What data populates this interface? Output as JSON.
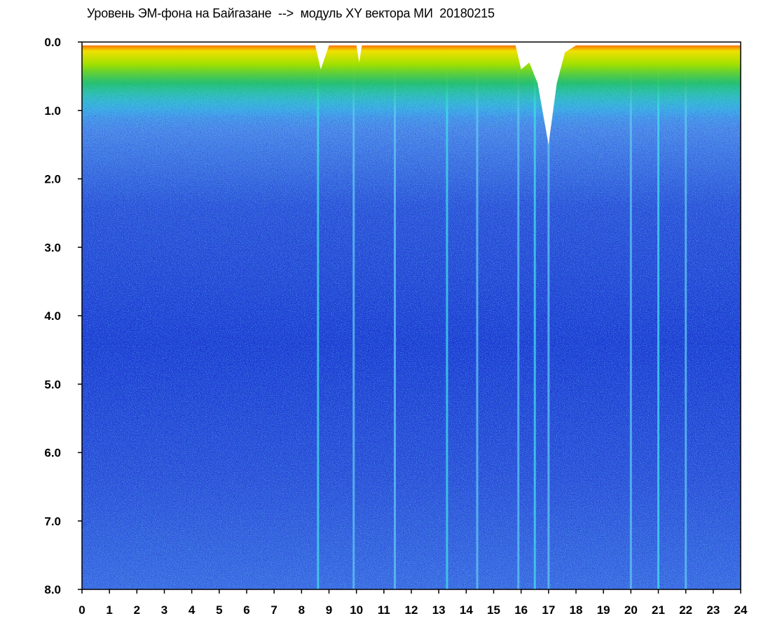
{
  "chart_data": {
    "type": "heatmap",
    "title": "Уровень ЭМ-фона на Байгазане  -->  модуль XY вектора МИ  20180215",
    "xlabel": "",
    "ylabel": "",
    "xlim": [
      0,
      24
    ],
    "ylim": [
      0,
      8
    ],
    "y_inverted": true,
    "grid": false,
    "x_ticks": [
      "0",
      "1",
      "2",
      "3",
      "4",
      "5",
      "6",
      "7",
      "8",
      "9",
      "10",
      "11",
      "12",
      "13",
      "14",
      "15",
      "16",
      "17",
      "18",
      "19",
      "20",
      "21",
      "22",
      "23",
      "24"
    ],
    "y_ticks": [
      "0.0",
      "1.0",
      "2.0",
      "3.0",
      "4.0",
      "5.0",
      "6.0",
      "7.0",
      "8.0"
    ],
    "colorscale": [
      "#0000c8",
      "#3c5ad2",
      "#6e8cf0",
      "#28dcf0",
      "#00b400",
      "#f0f000",
      "#f00000"
    ],
    "background_color": "#ffffff",
    "envelope": [
      {
        "hour": 0,
        "y": 0.05
      },
      {
        "hour": 8.5,
        "y": 0.05
      },
      {
        "hour": 8.7,
        "y": 0.4
      },
      {
        "hour": 9.0,
        "y": 0.05
      },
      {
        "hour": 10.0,
        "y": 0.05
      },
      {
        "hour": 10.1,
        "y": 0.3
      },
      {
        "hour": 10.2,
        "y": 0.05
      },
      {
        "hour": 15.8,
        "y": 0.05
      },
      {
        "hour": 16.0,
        "y": 0.4
      },
      {
        "hour": 16.3,
        "y": 0.3
      },
      {
        "hour": 16.6,
        "y": 0.6
      },
      {
        "hour": 17.0,
        "y": 1.5
      },
      {
        "hour": 17.3,
        "y": 0.6
      },
      {
        "hour": 17.6,
        "y": 0.15
      },
      {
        "hour": 18.0,
        "y": 0.05
      },
      {
        "hour": 24,
        "y": 0.05
      }
    ],
    "vertical_streaks": [
      8.6,
      9.9,
      11.4,
      13.3,
      14.4,
      15.9,
      16.5,
      17.0,
      20.0,
      21.0,
      22.0
    ]
  }
}
